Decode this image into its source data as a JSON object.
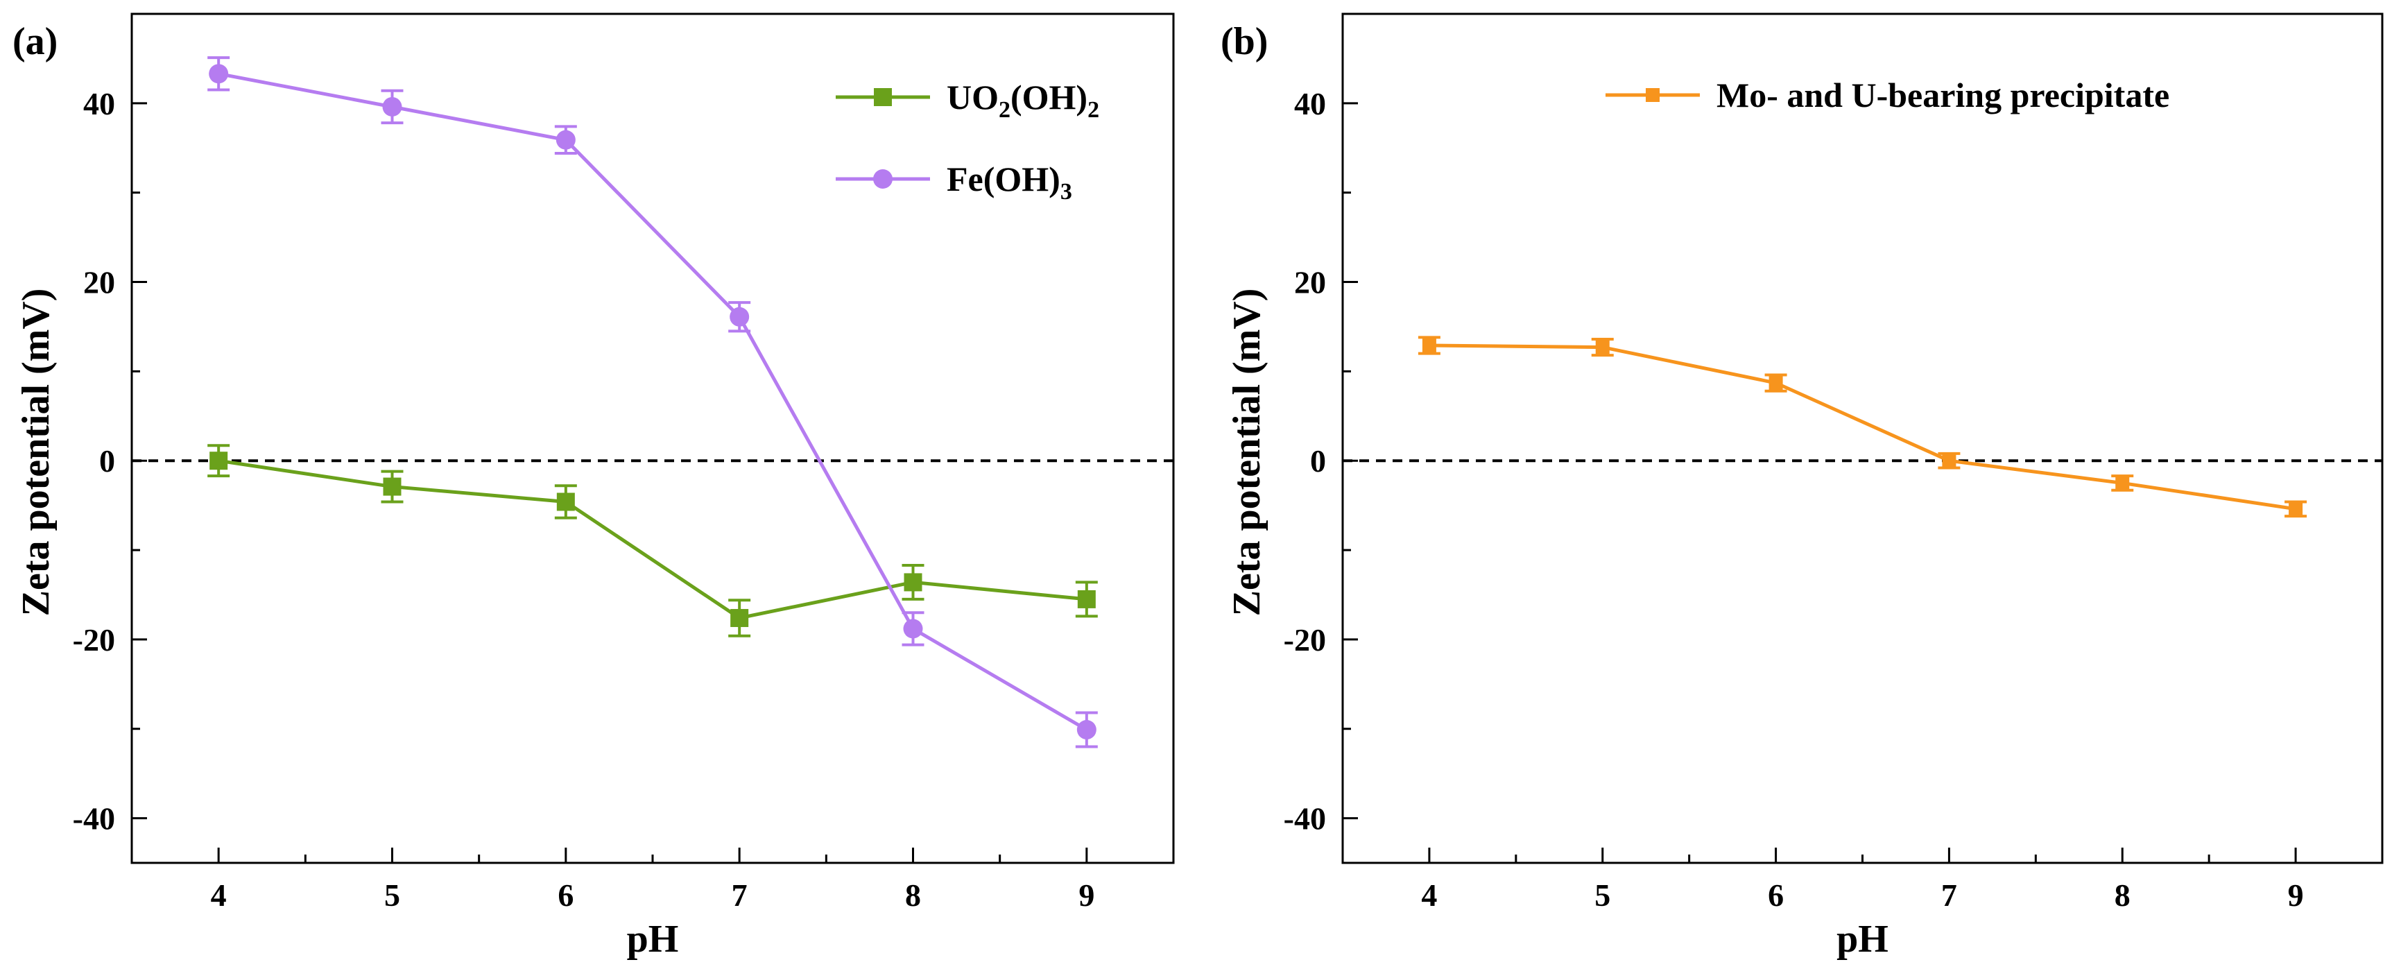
{
  "chart_data": [
    {
      "type": "line",
      "panel_label": "(a)",
      "xlabel": "pH",
      "ylabel": "Zeta potential (mV)",
      "xlim": [
        3.5,
        9.5
      ],
      "ylim": [
        -45,
        50
      ],
      "x_ticks": [
        4,
        5,
        6,
        7,
        8,
        9
      ],
      "y_ticks": [
        -40,
        -20,
        0,
        20,
        40
      ],
      "reference_line": {
        "y": 0,
        "style": "dashed"
      },
      "legend_position": "top-right",
      "series": [
        {
          "name": "UO2(OH)2",
          "legend_main": "UO",
          "legend_sub1": "2",
          "legend_mid": "(OH)",
          "legend_sub2": "2",
          "color": "#6aa11b",
          "marker": "square",
          "x": [
            4,
            5,
            6,
            7,
            8,
            9
          ],
          "y": [
            0,
            -2.9,
            -4.6,
            -17.6,
            -13.6,
            -15.5
          ],
          "error": [
            1.7,
            1.7,
            1.8,
            2.0,
            1.9,
            1.9
          ]
        },
        {
          "name": "Fe(OH)3",
          "legend_main": "Fe(OH)",
          "legend_sub1": "3",
          "color": "#b57cf0",
          "marker": "circle",
          "x": [
            4,
            5,
            6,
            7,
            8,
            9
          ],
          "y": [
            43.3,
            39.6,
            35.9,
            16.1,
            -18.8,
            -30.1
          ],
          "error": [
            1.8,
            1.8,
            1.5,
            1.6,
            1.8,
            1.9
          ]
        }
      ]
    },
    {
      "type": "line",
      "panel_label": "(b)",
      "xlabel": "pH",
      "ylabel": "Zeta potential (mV)",
      "xlim": [
        3.5,
        9.5
      ],
      "ylim": [
        -45,
        50
      ],
      "x_ticks": [
        4,
        5,
        6,
        7,
        8,
        9
      ],
      "y_ticks": [
        -40,
        -20,
        0,
        20,
        40
      ],
      "reference_line": {
        "y": 0,
        "style": "dashed"
      },
      "legend_position": "top-right",
      "series": [
        {
          "name": "Mo- and U-bearing precipitate",
          "color": "#f7941d",
          "marker": "square",
          "x": [
            4,
            5,
            6,
            7,
            8,
            9
          ],
          "y": [
            12.9,
            12.7,
            8.7,
            0,
            -2.5,
            -5.4
          ],
          "error": [
            0.9,
            0.9,
            0.9,
            0.8,
            0.8,
            0.8
          ]
        }
      ]
    }
  ]
}
